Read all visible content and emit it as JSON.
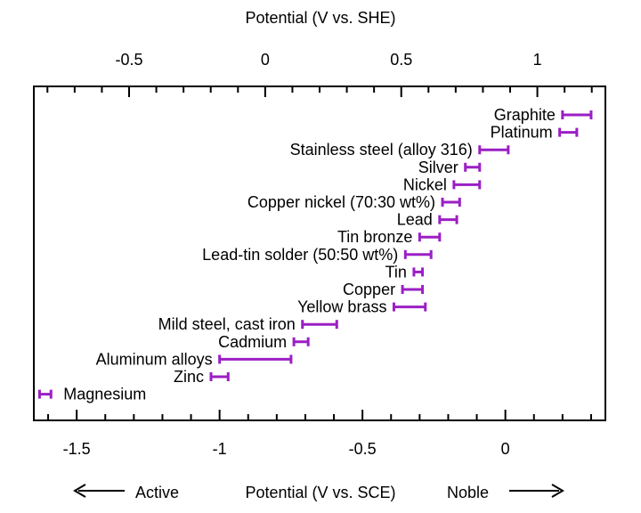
{
  "chart_data": {
    "type": "range-bar",
    "top_axis_label": "Potential (V vs. SHE)",
    "bottom_axis_label": "Potential (V vs. SCE)",
    "direction_left": "Active",
    "direction_right": "Noble",
    "bottom_xlim": [
      -1.65,
      0.35
    ],
    "top_xlim": [
      -0.85,
      1.25
    ],
    "bottom_ticks": [
      {
        "value": -1.5,
        "label": "-1.5"
      },
      {
        "value": -1.0,
        "label": "-1"
      },
      {
        "value": -0.5,
        "label": "-0.5"
      },
      {
        "value": 0.0,
        "label": "0"
      }
    ],
    "top_ticks": [
      {
        "value": -0.5,
        "label": "-0.5"
      },
      {
        "value": 0.0,
        "label": "0"
      },
      {
        "value": 0.5,
        "label": "0.5"
      },
      {
        "value": 1.0,
        "label": "1"
      }
    ],
    "grid": false,
    "bar_color": "#9b1fc4",
    "series": [
      {
        "name": "Graphite",
        "low": 0.2,
        "high": 0.3
      },
      {
        "name": "Platinum",
        "low": 0.19,
        "high": 0.25
      },
      {
        "name": "Stainless steel (alloy 316)",
        "low": -0.09,
        "high": 0.01
      },
      {
        "name": "Silver",
        "low": -0.14,
        "high": -0.09
      },
      {
        "name": "Nickel",
        "low": -0.18,
        "high": -0.09
      },
      {
        "name": "Copper nickel (70:30 wt%)",
        "low": -0.22,
        "high": -0.16
      },
      {
        "name": "Lead",
        "low": -0.23,
        "high": -0.17
      },
      {
        "name": "Tin bronze",
        "low": -0.3,
        "high": -0.23
      },
      {
        "name": "Lead-tin solder (50:50 wt%)",
        "low": -0.35,
        "high": -0.26
      },
      {
        "name": "Tin",
        "low": -0.32,
        "high": -0.29
      },
      {
        "name": "Copper",
        "low": -0.36,
        "high": -0.29
      },
      {
        "name": "Yellow brass",
        "low": -0.39,
        "high": -0.28
      },
      {
        "name": "Mild steel, cast iron",
        "low": -0.71,
        "high": -0.59
      },
      {
        "name": "Cadmium",
        "low": -0.74,
        "high": -0.69
      },
      {
        "name": "Aluminum alloys",
        "low": -1.0,
        "high": -0.75
      },
      {
        "name": "Zinc",
        "low": -1.03,
        "high": -0.97
      },
      {
        "name": "Magnesium",
        "low": -1.63,
        "high": -1.59
      }
    ]
  }
}
